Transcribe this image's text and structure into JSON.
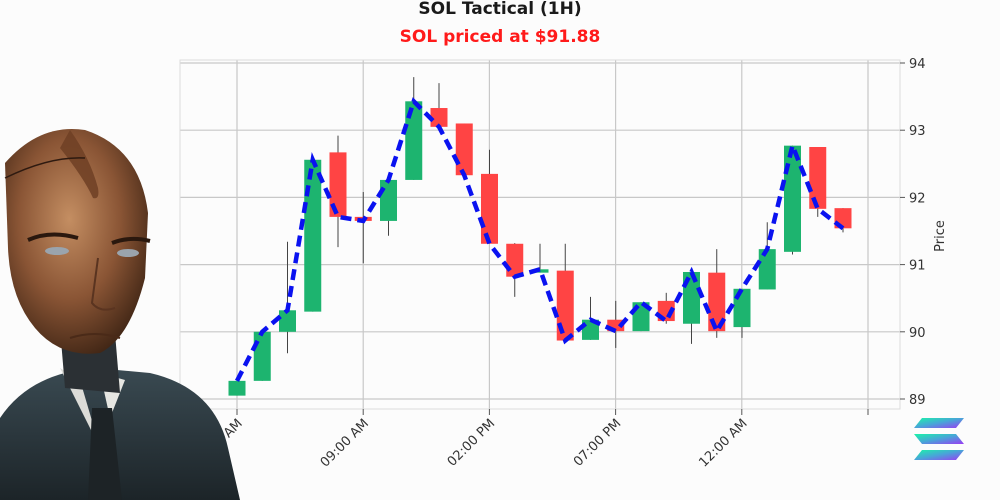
{
  "header": {
    "title": "SOL Tactical (1H)",
    "subtitle": "SOL priced at $91.88"
  },
  "colors": {
    "up": "#1db46f",
    "down": "#ff4444",
    "close_line": "#0a12f0",
    "grid": "#c8c8c8",
    "subtitle": "#ff1a1a"
  },
  "icons": {
    "logo": "solana-logo-icon",
    "avatar": "android-trader-avatar"
  },
  "chart_data": {
    "type": "candlestick",
    "title": "SOL Tactical (1H)",
    "subtitle": "SOL priced at $91.88",
    "xlabel": "",
    "ylabel": "Price",
    "ylim": [
      89,
      94
    ],
    "yticks": [
      89,
      90,
      91,
      92,
      93,
      94
    ],
    "xtick_labels": [
      "04:00 AM",
      "09:00 AM",
      "02:00 PM",
      "07:00 PM",
      "12:00 AM",
      ""
    ],
    "grid": true,
    "y_axis_position": "right",
    "overlay": {
      "name": "Close",
      "style": "dashed",
      "color": "#0a12f0"
    },
    "categories": [
      "04:00 AM",
      "05:00 AM",
      "06:00 AM",
      "07:00 AM",
      "08:00 AM",
      "09:00 AM",
      "10:00 AM",
      "11:00 AM",
      "12:00 PM",
      "01:00 PM",
      "02:00 PM",
      "03:00 PM",
      "04:00 PM",
      "05:00 PM",
      "06:00 PM",
      "07:00 PM",
      "08:00 PM",
      "09:00 PM",
      "10:00 PM",
      "11:00 PM",
      "12:00 AM",
      "01:00 AM",
      "02:00 AM",
      "03:00 AM",
      "04:00 AM"
    ],
    "open": [
      89.05,
      89.27,
      90.0,
      90.3,
      92.67,
      91.71,
      91.65,
      92.26,
      93.33,
      93.1,
      92.35,
      91.31,
      90.88,
      90.91,
      89.88,
      90.18,
      90.01,
      90.46,
      90.12,
      90.88,
      90.07,
      90.63,
      91.19,
      92.75,
      91.84
    ],
    "high": [
      89.27,
      90.0,
      91.34,
      92.56,
      92.92,
      92.08,
      92.26,
      93.79,
      93.7,
      93.1,
      92.71,
      91.32,
      91.31,
      91.31,
      90.52,
      90.46,
      90.44,
      90.58,
      90.89,
      91.23,
      90.64,
      91.63,
      92.77,
      92.75,
      91.84
    ],
    "low": [
      89.05,
      89.27,
      89.68,
      90.3,
      91.26,
      91.02,
      91.43,
      92.26,
      92.99,
      92.33,
      91.31,
      90.52,
      90.88,
      89.87,
      89.88,
      89.76,
      90.01,
      90.12,
      89.82,
      89.91,
      89.91,
      90.63,
      91.15,
      91.71,
      91.48
    ],
    "close": [
      89.27,
      90.0,
      90.32,
      92.56,
      91.71,
      91.65,
      92.26,
      93.43,
      93.05,
      92.33,
      91.31,
      90.82,
      90.93,
      89.87,
      90.18,
      90.01,
      90.44,
      90.16,
      90.89,
      90.01,
      90.64,
      91.23,
      92.77,
      91.83,
      91.54
    ]
  }
}
